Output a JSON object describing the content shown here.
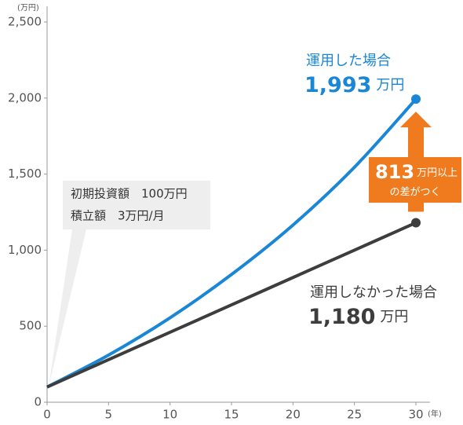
{
  "chart_data": {
    "type": "line",
    "y_label": "(万円)",
    "x_label": "(年)",
    "x": [
      0,
      5,
      10,
      15,
      20,
      25,
      30
    ],
    "xlim": [
      0,
      30
    ],
    "xticks": [
      0,
      5,
      10,
      15,
      20,
      25,
      30
    ],
    "ylim": [
      0,
      2500
    ],
    "yticks": [
      0,
      500,
      {
        "value": 1000,
        "label": "1,000"
      },
      {
        "value": 1500,
        "label": "1,500"
      },
      {
        "value": 2000,
        "label": "2,000"
      },
      {
        "value": 2500,
        "label": "2,500"
      }
    ],
    "unit": "万円",
    "series": [
      {
        "name": "運用した場合",
        "color": "#1a87d6",
        "values": [
          100,
          310,
          555,
          840,
          1165,
          1545,
          1993
        ],
        "value_labels": [
          null,
          null,
          null,
          null,
          null,
          null,
          "1,993"
        ]
      },
      {
        "name": "運用しなかった場合",
        "color": "#3d3d3d",
        "values": [
          100,
          280,
          460,
          640,
          820,
          1000,
          1180
        ],
        "value_labels": [
          null,
          null,
          null,
          null,
          null,
          null,
          "1,180"
        ]
      }
    ],
    "note": [
      "初期投資額　100万円",
      "積立額　3万円/月"
    ],
    "gap": {
      "value": 813,
      "text": [
        "万円以上",
        "の差がつく"
      ],
      "color": "#f07b1e"
    }
  }
}
